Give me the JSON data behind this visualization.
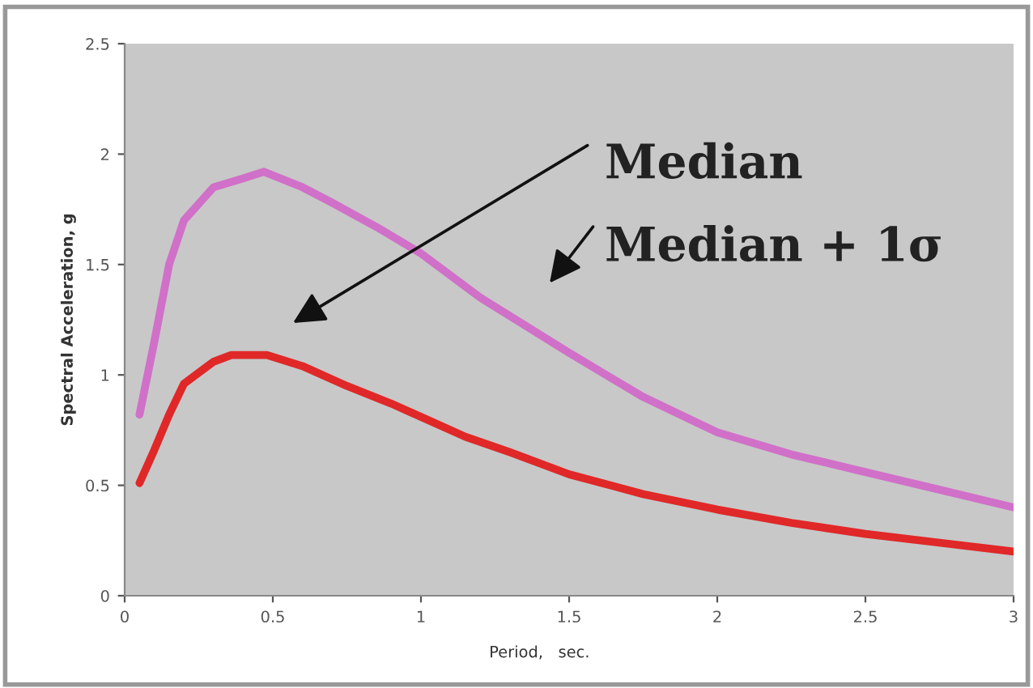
{
  "chart_data": {
    "type": "line",
    "xlabel": "Period,   sec.",
    "ylabel": "Spectral Acceleration, g",
    "xlim": [
      0,
      3
    ],
    "ylim": [
      0,
      2.5
    ],
    "xticks": [
      0,
      0.5,
      1,
      1.5,
      2,
      2.5,
      3
    ],
    "yticks": [
      0,
      0.5,
      1,
      1.5,
      2,
      2.5
    ],
    "grid": false,
    "legend": false,
    "series": [
      {
        "color": "#d070c8",
        "x": [
          0.05,
          0.1,
          0.15,
          0.2,
          0.3,
          0.4,
          0.47,
          0.6,
          0.7,
          0.85,
          1.0,
          1.2,
          1.5,
          1.75,
          2.0,
          2.25,
          2.5,
          2.75,
          3.0
        ],
        "values": [
          0.82,
          1.15,
          1.5,
          1.7,
          1.85,
          1.89,
          1.92,
          1.85,
          1.78,
          1.67,
          1.55,
          1.35,
          1.1,
          0.9,
          0.74,
          0.64,
          0.56,
          0.48,
          0.4
        ]
      },
      {
        "color": "#e02828",
        "x": [
          0.05,
          0.1,
          0.15,
          0.2,
          0.3,
          0.36,
          0.48,
          0.6,
          0.75,
          0.9,
          1.0,
          1.15,
          1.3,
          1.5,
          1.75,
          2.0,
          2.25,
          2.5,
          2.75,
          3.0
        ],
        "values": [
          0.51,
          0.66,
          0.82,
          0.96,
          1.06,
          1.09,
          1.09,
          1.04,
          0.95,
          0.87,
          0.81,
          0.72,
          0.65,
          0.55,
          0.46,
          0.39,
          0.33,
          0.28,
          0.24,
          0.2
        ]
      }
    ],
    "annotations": [
      "Median",
      "Median + 1σ"
    ]
  }
}
